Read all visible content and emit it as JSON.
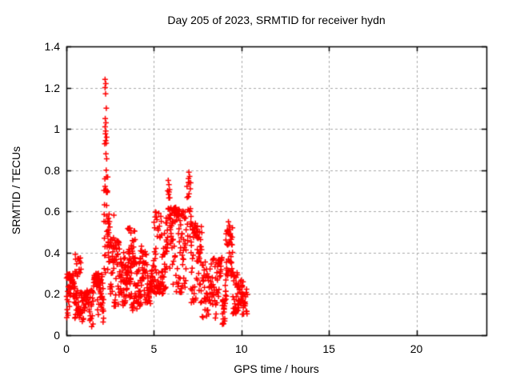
{
  "page": {
    "background": "#ffffff",
    "text_color": "#000000"
  },
  "chart_data": {
    "type": "scatter",
    "title": "Day 205 of 2023, SRMTID for receiver hydn",
    "xlabel": "GPS time / hours",
    "ylabel": "SRMTID / TECUs",
    "xlim": [
      0,
      24
    ],
    "ylim": [
      0,
      1.4
    ],
    "xticks": {
      "values": [
        0,
        5,
        10,
        15,
        20
      ],
      "labels": [
        "0",
        "5",
        "10",
        "15",
        "20"
      ]
    },
    "yticks": {
      "values": [
        0,
        0.2,
        0.4,
        0.6,
        0.8,
        1.0,
        1.2,
        1.4
      ],
      "labels": [
        "0",
        "0.2",
        "0.4",
        "0.6",
        "0.8",
        "1",
        "1.2",
        "1.4"
      ]
    },
    "grid": {
      "show": true,
      "color": "#a8a8a8",
      "dash": [
        3,
        3
      ],
      "line_width": 1
    },
    "border_color": "#000000",
    "border_width": 1.5,
    "tick_length": 6,
    "marker": {
      "shape": "plus",
      "color": "#ff0000",
      "size": 7,
      "line_width": 1.5
    },
    "series": [
      {
        "name": "SRMTID",
        "color": "#ff0000",
        "seed": 20230205,
        "x_extent": [
          0,
          10.35
        ],
        "peak_points": [
          [
            2.21,
            1.24
          ],
          [
            2.25,
            1.22
          ],
          [
            2.21,
            1.2
          ],
          [
            2.24,
            1.17
          ],
          [
            2.28,
            1.1
          ],
          [
            2.22,
            1.05
          ],
          [
            2.26,
            1.03
          ],
          [
            2.21,
            1.01
          ],
          [
            2.25,
            0.99
          ],
          [
            2.3,
            0.96
          ],
          [
            5.82,
            0.75
          ],
          [
            5.86,
            0.73
          ],
          [
            5.79,
            0.7
          ],
          [
            7.0,
            0.79
          ],
          [
            7.04,
            0.77
          ],
          [
            6.97,
            0.74
          ],
          [
            7.08,
            0.71
          ],
          [
            9.26,
            0.55
          ],
          [
            9.31,
            0.53
          ],
          [
            9.22,
            0.51
          ]
        ],
        "clusters": [
          {
            "x0": 0.0,
            "x1": 0.45,
            "n": 48,
            "ymin": 0.07,
            "ymax": 0.3,
            "tracks": 3,
            "walk": 0.3
          },
          {
            "x0": 0.45,
            "x1": 0.85,
            "n": 54,
            "ymin": 0.08,
            "ymax": 0.4,
            "tracks": 3,
            "walk": 0.3
          },
          {
            "x0": 0.85,
            "x1": 1.55,
            "n": 54,
            "ymin": 0.04,
            "ymax": 0.22,
            "tracks": 3,
            "walk": 0.3
          },
          {
            "x0": 1.55,
            "x1": 2.14,
            "n": 63,
            "ymin": 0.05,
            "ymax": 0.3,
            "tracks": 3,
            "walk": 0.3
          },
          {
            "x0": 2.14,
            "x1": 2.42,
            "n": 40,
            "ymin": 0.3,
            "ymax": 1.02,
            "tracks": 2,
            "walk": 0.45
          },
          {
            "x0": 2.4,
            "x1": 2.72,
            "n": 34,
            "ymin": 0.2,
            "ymax": 0.6,
            "tracks": 2,
            "walk": 0.35
          },
          {
            "x0": 2.72,
            "x1": 3.05,
            "n": 36,
            "ymin": 0.13,
            "ymax": 0.46,
            "tracks": 2,
            "walk": 0.35
          },
          {
            "x0": 3.05,
            "x1": 3.6,
            "n": 58,
            "ymin": 0.12,
            "ymax": 0.42,
            "tracks": 3,
            "walk": 0.3
          },
          {
            "x0": 3.5,
            "x1": 3.95,
            "n": 28,
            "ymin": 0.3,
            "ymax": 0.52,
            "tracks": 2,
            "walk": 0.35
          },
          {
            "x0": 3.6,
            "x1": 4.25,
            "n": 56,
            "ymin": 0.12,
            "ymax": 0.38,
            "tracks": 3,
            "walk": 0.3
          },
          {
            "x0": 4.2,
            "x1": 5.0,
            "n": 74,
            "ymin": 0.15,
            "ymax": 0.44,
            "tracks": 3,
            "walk": 0.3
          },
          {
            "x0": 5.0,
            "x1": 5.75,
            "n": 84,
            "ymin": 0.2,
            "ymax": 0.6,
            "tracks": 3,
            "walk": 0.3
          },
          {
            "x0": 5.75,
            "x1": 5.95,
            "n": 16,
            "ymin": 0.42,
            "ymax": 0.73,
            "tracks": 1,
            "walk": 0.5
          },
          {
            "x0": 5.9,
            "x1": 6.85,
            "n": 94,
            "ymin": 0.2,
            "ymax": 0.62,
            "tracks": 3,
            "walk": 0.3
          },
          {
            "x0": 6.88,
            "x1": 7.15,
            "n": 20,
            "ymin": 0.38,
            "ymax": 0.76,
            "tracks": 1,
            "walk": 0.5
          },
          {
            "x0": 7.1,
            "x1": 7.75,
            "n": 64,
            "ymin": 0.15,
            "ymax": 0.55,
            "tracks": 3,
            "walk": 0.3
          },
          {
            "x0": 7.75,
            "x1": 8.9,
            "n": 86,
            "ymin": 0.08,
            "ymax": 0.38,
            "tracks": 3,
            "walk": 0.3
          },
          {
            "x0": 8.9,
            "x1": 9.12,
            "n": 24,
            "ymin": 0.05,
            "ymax": 0.28,
            "tracks": 2,
            "walk": 0.35
          },
          {
            "x0": 9.1,
            "x1": 9.5,
            "n": 44,
            "ymin": 0.13,
            "ymax": 0.53,
            "tracks": 2,
            "walk": 0.4
          },
          {
            "x0": 9.5,
            "x1": 10.1,
            "n": 54,
            "ymin": 0.1,
            "ymax": 0.32,
            "tracks": 3,
            "walk": 0.3
          },
          {
            "x0": 10.05,
            "x1": 10.35,
            "n": 18,
            "ymin": 0.1,
            "ymax": 0.28,
            "tracks": 2,
            "walk": 0.35
          }
        ]
      }
    ]
  }
}
